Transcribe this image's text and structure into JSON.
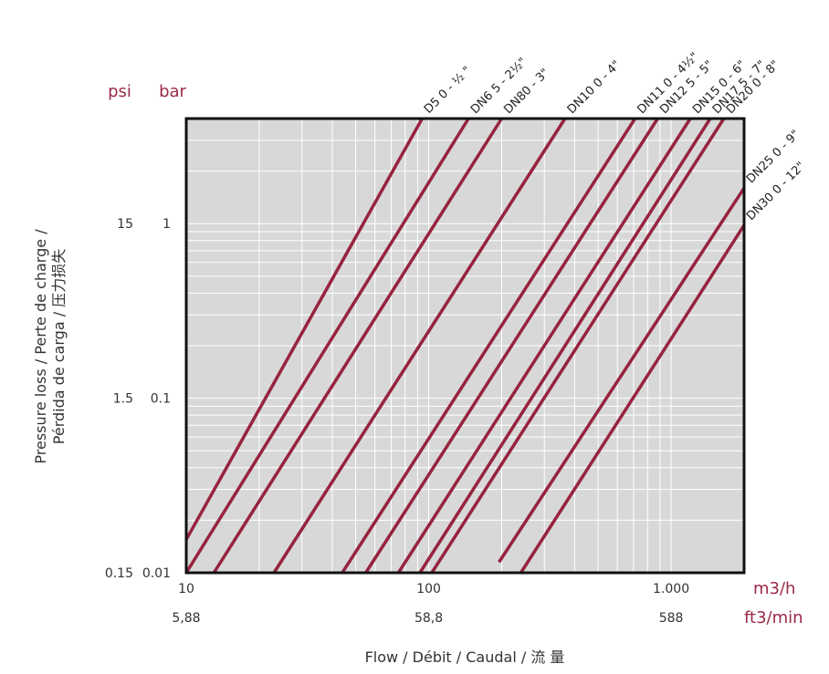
{
  "chart_data": {
    "type": "line",
    "x_scale": "log",
    "y_scale": "log",
    "xlim": [
      10,
      2000
    ],
    "ylim": [
      0.01,
      4
    ],
    "grid": true,
    "xlabel": "Flow / Débit / Caudal / 流 量",
    "ylabel_line1": "Pressure loss / Perte de charge /",
    "ylabel_line2": "Pérdida de carga / 压力损失",
    "units": {
      "y_psi": "psi",
      "y_bar": "bar",
      "x_m3h": "m3/h",
      "x_ft3min": "ft3/min"
    },
    "x_ticks": [
      {
        "value": 10,
        "label": "10",
        "label_alt": "5,88"
      },
      {
        "value": 100,
        "label": "100",
        "label_alt": "58,8"
      },
      {
        "value": 1000,
        "label": "1.000",
        "label_alt": "588"
      }
    ],
    "y_ticks": [
      {
        "value": 1,
        "label_bar": "1",
        "label_psi": "15"
      },
      {
        "value": 0.1,
        "label_bar": "0.1",
        "label_psi": "1.5"
      },
      {
        "value": 0.01,
        "label_bar": "0.01",
        "label_psi": "0.15"
      }
    ],
    "series": [
      {
        "name": "D5 0 - ½ \"",
        "x": [
          10,
          94
        ],
        "y": [
          0.0155,
          4
        ]
      },
      {
        "name": "DN6 5 - 2½\"",
        "x": [
          10,
          146
        ],
        "y": [
          0.01,
          4
        ]
      },
      {
        "name": "DN80 - 3\"",
        "x": [
          13,
          200
        ],
        "y": [
          0.01,
          4
        ]
      },
      {
        "name": "DN10 0 - 4\"",
        "x": [
          23,
          365
        ],
        "y": [
          0.01,
          4
        ]
      },
      {
        "name": "DN11 0 - 4½\"",
        "x": [
          44,
          710
        ],
        "y": [
          0.01,
          4
        ]
      },
      {
        "name": "DN12 5 - 5\"",
        "x": [
          55,
          880
        ],
        "y": [
          0.01,
          4
        ]
      },
      {
        "name": "DN15 0 - 6\"",
        "x": [
          75,
          1200
        ],
        "y": [
          0.01,
          4
        ]
      },
      {
        "name": "DN17 5 - 7\"",
        "x": [
          92,
          1450
        ],
        "y": [
          0.01,
          4
        ]
      },
      {
        "name": "DN20 0 - 8\"",
        "x": [
          103,
          1650
        ],
        "y": [
          0.01,
          4
        ]
      },
      {
        "name": "DN25 0 - 9\"",
        "x": [
          195,
          2000
        ],
        "y": [
          0.0115,
          1.6
        ]
      },
      {
        "name": "DN30 0 - 12\"",
        "x": [
          240,
          2000
        ],
        "y": [
          0.01,
          0.98
        ]
      }
    ],
    "colors": {
      "series": "#97233f",
      "plot_background": "#d8d8d8",
      "grid": "#ffffff",
      "frame": "#111111",
      "unit_text": "#9a2a48"
    }
  }
}
